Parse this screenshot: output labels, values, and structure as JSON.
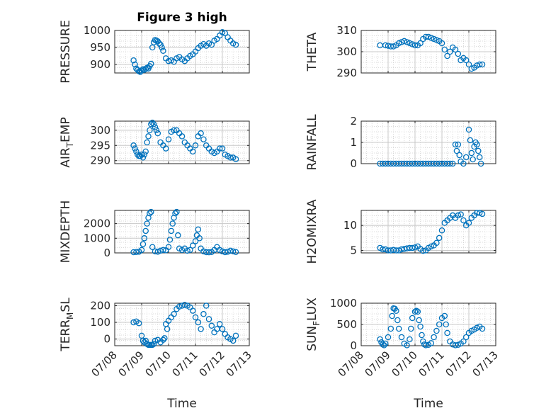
{
  "figure_title": "Figure 3 high",
  "colors": {
    "marker": "#0072BD",
    "axis": "#262626",
    "grid": "#d0d0d0"
  },
  "chart_data": [
    {
      "type": "scatter",
      "ylabel": "PRESSURE",
      "title": "Figure 3 high",
      "ylim": [
        875,
        1000
      ],
      "yticks": [
        900,
        950,
        1000
      ],
      "grid": true,
      "x": [
        "07/08.7",
        "07/08.75",
        "07/08.8",
        "07/08.85",
        "07/08.9",
        "07/08.95",
        "07/09.0",
        "07/09.05",
        "07/09.1",
        "07/09.15",
        "07/09.2",
        "07/09.25",
        "07/09.3",
        "07/09.35",
        "07/09.4",
        "07/09.45",
        "07/09.5",
        "07/09.55",
        "07/09.6",
        "07/09.65",
        "07/09.7",
        "07/09.75",
        "07/09.8",
        "07/09.9",
        "07/10.0",
        "07/10.1",
        "07/10.2",
        "07/10.3",
        "07/10.4",
        "07/10.5",
        "07/10.6",
        "07/10.7",
        "07/10.8",
        "07/10.9",
        "07/11.0",
        "07/11.1",
        "07/11.2",
        "07/11.3",
        "07/11.4",
        "07/11.5",
        "07/11.6",
        "07/11.7",
        "07/11.8",
        "07/11.9",
        "07/12.0",
        "07/12.1",
        "07/12.2",
        "07/12.3",
        "07/12.4",
        "07/12.5"
      ],
      "values": [
        912,
        900,
        888,
        884,
        880,
        878,
        882,
        886,
        884,
        887,
        890,
        888,
        895,
        902,
        950,
        965,
        972,
        970,
        968,
        962,
        958,
        950,
        940,
        918,
        910,
        912,
        908,
        918,
        922,
        915,
        910,
        918,
        925,
        930,
        938,
        948,
        955,
        960,
        955,
        962,
        958,
        970,
        975,
        985,
        995,
        992,
        980,
        970,
        962,
        958
      ]
    },
    {
      "type": "scatter",
      "ylabel": "THETA",
      "ylim": [
        290,
        310
      ],
      "yticks": [
        290,
        300,
        310
      ],
      "grid": true,
      "x": [
        "07/08.7",
        "07/08.9",
        "07/09.0",
        "07/09.1",
        "07/09.2",
        "07/09.3",
        "07/09.4",
        "07/09.5",
        "07/09.6",
        "07/09.7",
        "07/09.8",
        "07/09.9",
        "07/10.0",
        "07/10.1",
        "07/10.2",
        "07/10.3",
        "07/10.4",
        "07/10.5",
        "07/10.6",
        "07/10.7",
        "07/10.8",
        "07/10.9",
        "07/11.0",
        "07/11.1",
        "07/11.2",
        "07/11.3",
        "07/11.4",
        "07/11.5",
        "07/11.6",
        "07/11.7",
        "07/11.8",
        "07/11.9",
        "07/12.0",
        "07/12.1",
        "07/12.2",
        "07/12.3",
        "07/12.4",
        "07/12.5"
      ],
      "values": [
        303,
        303,
        302.8,
        302.5,
        302.5,
        303,
        304,
        304.5,
        305,
        304.5,
        304,
        303.5,
        303,
        303,
        304,
        306,
        307,
        307,
        306.5,
        306,
        305.5,
        305,
        304,
        301,
        298,
        300,
        302,
        301,
        299,
        296,
        297,
        296,
        294,
        292,
        292.5,
        293.5,
        294,
        294
      ]
    },
    {
      "type": "scatter",
      "ylabel": "AIR_TEMP",
      "ylim": [
        289,
        303
      ],
      "yticks": [
        290,
        295,
        300
      ],
      "grid": true,
      "x": [
        "07/08.7",
        "07/08.75",
        "07/08.8",
        "07/08.85",
        "07/08.9",
        "07/08.95",
        "07/09.0",
        "07/09.05",
        "07/09.1",
        "07/09.15",
        "07/09.2",
        "07/09.25",
        "07/09.3",
        "07/09.35",
        "07/09.4",
        "07/09.45",
        "07/09.5",
        "07/09.55",
        "07/09.6",
        "07/09.7",
        "07/09.8",
        "07/09.9",
        "07/10.0",
        "07/10.1",
        "07/10.2",
        "07/10.3",
        "07/10.4",
        "07/10.5",
        "07/10.6",
        "07/10.7",
        "07/10.8",
        "07/10.9",
        "07/11.0",
        "07/11.1",
        "07/11.2",
        "07/11.3",
        "07/11.4",
        "07/11.5",
        "07/11.6",
        "07/11.7",
        "07/11.8",
        "07/11.9",
        "07/12.0",
        "07/12.1",
        "07/12.2",
        "07/12.3",
        "07/12.4",
        "07/12.5"
      ],
      "values": [
        295,
        294,
        293,
        292,
        291.5,
        291.5,
        292,
        291,
        292,
        293,
        296,
        298,
        300,
        302,
        302.5,
        302,
        301,
        300,
        299,
        296,
        295,
        294,
        297,
        299.5,
        300,
        300,
        299,
        298,
        296,
        295,
        294,
        293,
        295,
        298,
        299,
        297,
        295,
        294,
        293,
        292.5,
        293,
        294,
        294,
        292,
        291.5,
        291,
        291,
        290.5
      ]
    },
    {
      "type": "scatter",
      "ylabel": "RAINFALL",
      "ylim": [
        0,
        2
      ],
      "yticks": [
        0,
        1,
        2
      ],
      "grid": true,
      "x": [
        "07/08.7",
        "07/08.8",
        "07/08.9",
        "07/09.0",
        "07/09.1",
        "07/09.2",
        "07/09.3",
        "07/09.4",
        "07/09.5",
        "07/09.6",
        "07/09.7",
        "07/09.8",
        "07/09.9",
        "07/10.0",
        "07/10.1",
        "07/10.2",
        "07/10.3",
        "07/10.4",
        "07/10.5",
        "07/10.6",
        "07/10.7",
        "07/10.8",
        "07/10.9",
        "07/11.0",
        "07/11.1",
        "07/11.2",
        "07/11.3",
        "07/11.4",
        "07/11.5",
        "07/11.55",
        "07/11.6",
        "07/11.65",
        "07/11.7",
        "07/11.8",
        "07/11.9",
        "07/12.0",
        "07/12.05",
        "07/12.1",
        "07/12.15",
        "07/12.2",
        "07/12.25",
        "07/12.3",
        "07/12.35",
        "07/12.4",
        "07/12.45"
      ],
      "values": [
        0,
        0,
        0,
        0,
        0,
        0,
        0,
        0,
        0,
        0,
        0,
        0,
        0,
        0,
        0,
        0,
        0,
        0,
        0,
        0,
        0,
        0,
        0,
        0,
        0,
        0,
        0,
        0,
        0.9,
        0.6,
        0.9,
        0.4,
        0.1,
        0,
        0.3,
        1.6,
        1.1,
        0.5,
        0.2,
        0.8,
        1.0,
        0.9,
        0.6,
        0.3,
        0
      ]
    },
    {
      "type": "scatter",
      "ylabel": "MIXDEPTH",
      "ylim": [
        0,
        2900
      ],
      "yticks": [
        0,
        1000,
        2000
      ],
      "grid": true,
      "x": [
        "07/08.7",
        "07/08.8",
        "07/08.9",
        "07/09.0",
        "07/09.05",
        "07/09.1",
        "07/09.15",
        "07/09.2",
        "07/09.25",
        "07/09.3",
        "07/09.35",
        "07/09.4",
        "07/09.5",
        "07/09.6",
        "07/09.7",
        "07/09.8",
        "07/09.9",
        "07/10.0",
        "07/10.05",
        "07/10.1",
        "07/10.15",
        "07/10.2",
        "07/10.25",
        "07/10.3",
        "07/10.35",
        "07/10.4",
        "07/10.5",
        "07/10.6",
        "07/10.7",
        "07/10.8",
        "07/10.9",
        "07/11.0",
        "07/11.05",
        "07/11.1",
        "07/11.15",
        "07/11.2",
        "07/11.3",
        "07/11.4",
        "07/11.5",
        "07/11.6",
        "07/11.7",
        "07/11.8",
        "07/11.9",
        "07/12.0",
        "07/12.1",
        "07/12.2",
        "07/12.3",
        "07/12.4",
        "07/12.5"
      ],
      "values": [
        50,
        60,
        80,
        200,
        600,
        1000,
        1500,
        2000,
        2400,
        2700,
        2800,
        400,
        100,
        80,
        150,
        200,
        180,
        400,
        900,
        1500,
        2000,
        2400,
        2700,
        2800,
        1200,
        300,
        200,
        300,
        150,
        200,
        500,
        800,
        1200,
        1600,
        1000,
        300,
        100,
        50,
        40,
        60,
        200,
        400,
        200,
        100,
        50,
        80,
        150,
        100,
        60
      ]
    },
    {
      "type": "scatter",
      "ylabel": "H2OMIXRA",
      "ylim": [
        4.5,
        13
      ],
      "yticks": [
        5,
        10
      ],
      "grid": true,
      "x": [
        "07/08.7",
        "07/08.8",
        "07/08.9",
        "07/09.0",
        "07/09.1",
        "07/09.2",
        "07/09.3",
        "07/09.4",
        "07/09.5",
        "07/09.6",
        "07/09.7",
        "07/09.8",
        "07/09.9",
        "07/10.0",
        "07/10.1",
        "07/10.2",
        "07/10.3",
        "07/10.4",
        "07/10.5",
        "07/10.6",
        "07/10.7",
        "07/10.8",
        "07/10.9",
        "07/11.0",
        "07/11.1",
        "07/11.2",
        "07/11.3",
        "07/11.4",
        "07/11.5",
        "07/11.6",
        "07/11.7",
        "07/11.8",
        "07/11.9",
        "07/12.0",
        "07/12.1",
        "07/12.2",
        "07/12.3",
        "07/12.4",
        "07/12.5"
      ],
      "values": [
        5.5,
        5.2,
        5.2,
        5.0,
        5.0,
        5.1,
        5.0,
        5.0,
        5.2,
        5.3,
        5.4,
        5.5,
        5.5,
        5.6,
        5.8,
        5.3,
        4.9,
        5.0,
        5.5,
        5.8,
        6.0,
        6.5,
        7.5,
        9.0,
        10.5,
        11.0,
        11.5,
        12.0,
        11.5,
        12.0,
        12.2,
        11.0,
        10.0,
        10.5,
        11.5,
        12.0,
        12.5,
        12.5,
        12.3
      ]
    },
    {
      "type": "scatter",
      "ylabel": "TERR_MSL",
      "ylim": [
        -40,
        215
      ],
      "yticks": [
        0,
        100,
        200
      ],
      "grid": true,
      "x": [
        "07/08.7",
        "07/08.8",
        "07/08.9",
        "07/09.0",
        "07/09.05",
        "07/09.1",
        "07/09.15",
        "07/09.2",
        "07/09.25",
        "07/09.3",
        "07/09.35",
        "07/09.4",
        "07/09.45",
        "07/09.5",
        "07/09.6",
        "07/09.7",
        "07/09.8",
        "07/09.85",
        "07/09.9",
        "07/9.95",
        "07/10.0",
        "07/10.1",
        "07/10.2",
        "07/10.3",
        "07/10.4",
        "07/10.5",
        "07/10.6",
        "07/10.7",
        "07/10.8",
        "07/10.9",
        "07/11.0",
        "07/11.1",
        "07/11.2",
        "07/11.3",
        "07/11.4",
        "07/11.5",
        "07/11.6",
        "07/11.7",
        "07/11.8",
        "07/11.9",
        "07/12.0",
        "07/12.1",
        "07/12.2",
        "07/12.3",
        "07/12.4",
        "07/12.5"
      ],
      "values": [
        100,
        105,
        95,
        20,
        -10,
        -20,
        -10,
        -30,
        -35,
        -35,
        -35,
        -35,
        -30,
        -10,
        -5,
        -20,
        -5,
        5,
        90,
        60,
        110,
        130,
        150,
        180,
        195,
        200,
        205,
        200,
        190,
        170,
        130,
        100,
        60,
        150,
        200,
        120,
        80,
        40,
        60,
        90,
        60,
        30,
        10,
        0,
        -10,
        20
      ]
    },
    {
      "type": "scatter",
      "ylabel": "SUN_FLUX",
      "ylim": [
        0,
        1000
      ],
      "yticks": [
        0,
        500,
        1000
      ],
      "grid": true,
      "x": [
        "07/08.7",
        "07/08.75",
        "07/08.8",
        "07/08.85",
        "07/08.9",
        "07/09.0",
        "07/09.1",
        "07/09.15",
        "07/09.2",
        "07/09.25",
        "07/09.3",
        "07/09.35",
        "07/09.4",
        "07/09.5",
        "07/09.6",
        "07/09.7",
        "07/09.8",
        "07/09.85",
        "07/09.9",
        "07/10.0",
        "07/10.05",
        "07/10.1",
        "07/10.15",
        "07/10.2",
        "07/10.25",
        "07/10.3",
        "07/10.35",
        "07/10.4",
        "07/10.5",
        "07/10.6",
        "07/10.7",
        "07/10.8",
        "07/10.9",
        "07/11.0",
        "07/11.1",
        "07/11.15",
        "07/11.2",
        "07/11.3",
        "07/11.4",
        "07/11.5",
        "07/11.6",
        "07/11.7",
        "07/11.8",
        "07/11.9",
        "07/12.0",
        "07/12.1",
        "07/12.2",
        "07/12.3",
        "07/12.4",
        "07/12.5"
      ],
      "values": [
        150,
        80,
        30,
        10,
        50,
        200,
        400,
        700,
        880,
        870,
        820,
        600,
        400,
        200,
        50,
        10,
        150,
        400,
        650,
        800,
        820,
        800,
        600,
        450,
        250,
        100,
        30,
        10,
        20,
        60,
        200,
        350,
        500,
        650,
        700,
        500,
        300,
        100,
        30,
        10,
        20,
        50,
        100,
        200,
        300,
        350,
        380,
        420,
        450,
        400
      ]
    }
  ],
  "xticks": [
    "07/08",
    "07/09",
    "07/10",
    "07/11",
    "07/12",
    "07/13"
  ],
  "xlabel_left": "Time",
  "xlabel_right": "Time"
}
